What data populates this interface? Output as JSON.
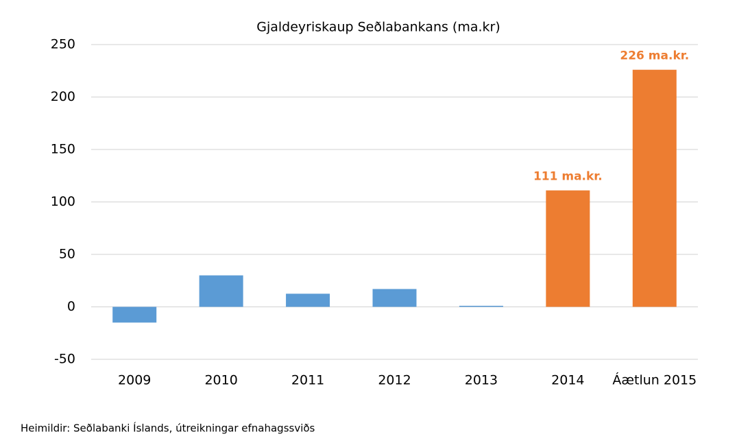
{
  "chart_data": {
    "type": "bar",
    "title": "Gjaldeyriskaup Seðlabankans (ma.kr)",
    "categories": [
      "2009",
      "2010",
      "2011",
      "2012",
      "2013",
      "2014",
      "Áætlun 2015"
    ],
    "values": [
      -15,
      30,
      12.5,
      17,
      1,
      111,
      226
    ],
    "value_labels": [
      null,
      null,
      null,
      null,
      null,
      "111 ma.kr.",
      "226 ma.kr."
    ],
    "colors": [
      "#5b9bd5",
      "#5b9bd5",
      "#5b9bd5",
      "#5b9bd5",
      "#5b9bd5",
      "#ed7d31",
      "#ed7d31"
    ],
    "ylim": [
      -50,
      250
    ],
    "yticks": [
      -50,
      0,
      50,
      100,
      150,
      200,
      250
    ],
    "grid": true,
    "source": "Heimildir: Seðlabanki Íslands, útreikningar efnahagssviðs"
  }
}
